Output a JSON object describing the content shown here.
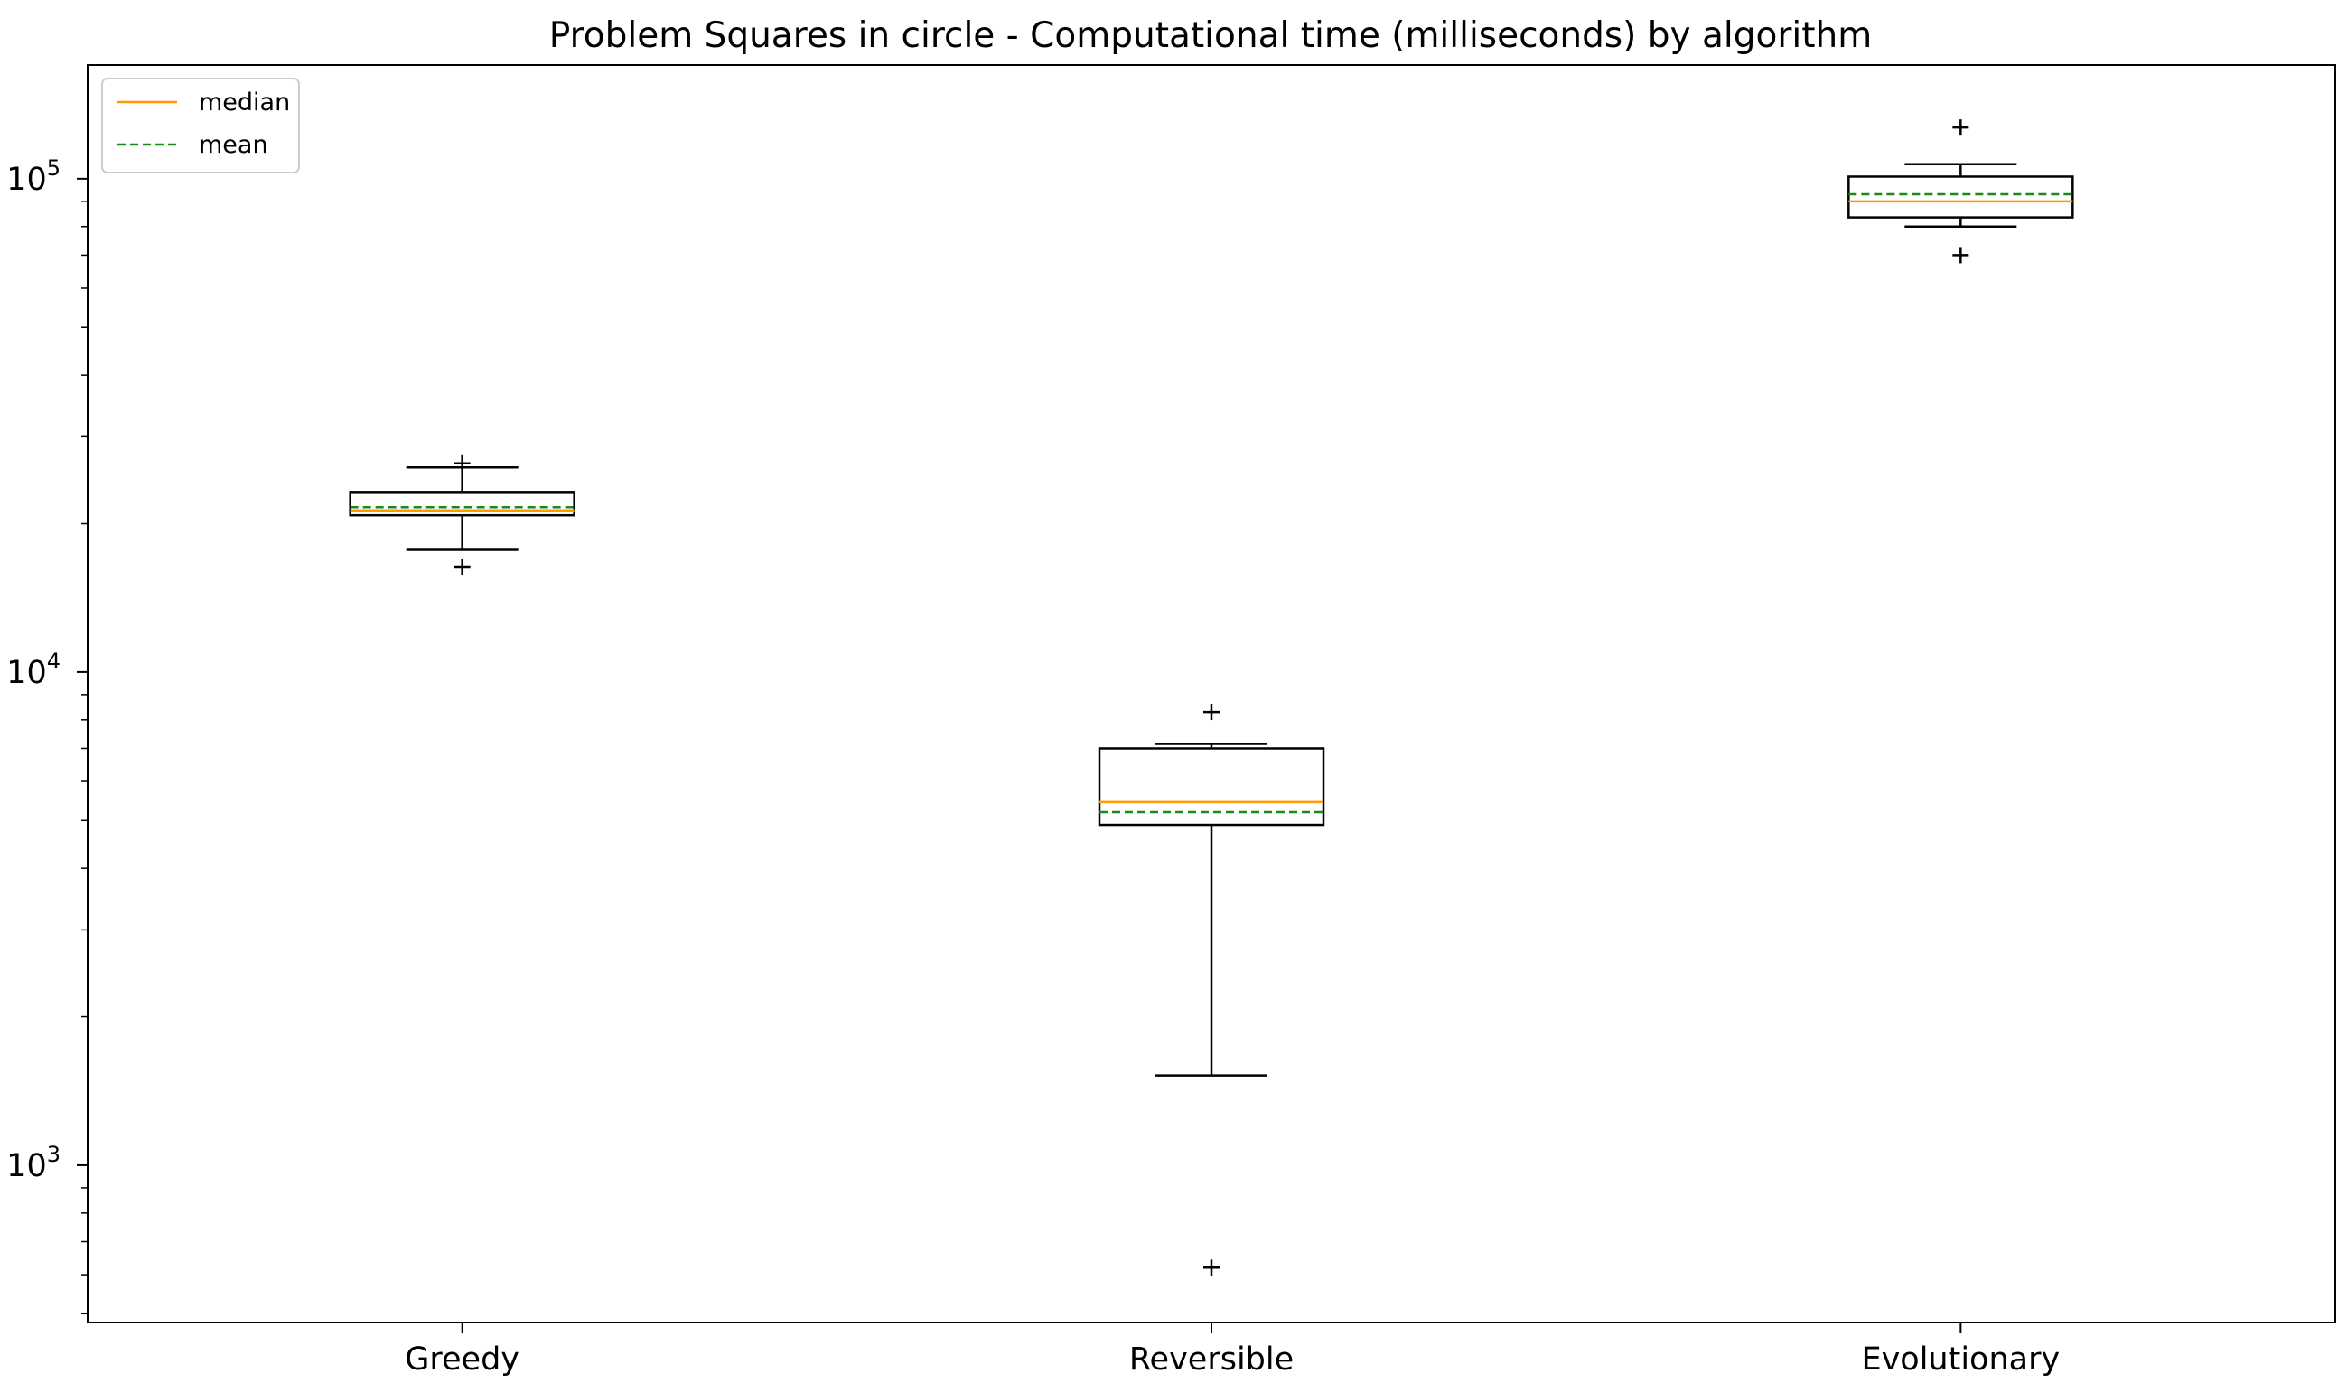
{
  "chart_data": {
    "type": "boxplot",
    "title": "Problem Squares in circle - Computational time (milliseconds) by algorithm",
    "xlabel": "",
    "ylabel": "",
    "yscale": "log",
    "ylim": [
      480,
      170000
    ],
    "y_tick_labels": [
      {
        "base": "10",
        "exp": "3",
        "value": 1000
      },
      {
        "base": "10",
        "exp": "4",
        "value": 10000
      },
      {
        "base": "10",
        "exp": "5",
        "value": 100000
      }
    ],
    "categories": [
      "Greedy",
      "Reversible",
      "Evolutionary"
    ],
    "boxes": [
      {
        "q1": 20800,
        "median": 21200,
        "mean": 21600,
        "q3": 23100,
        "whisker_low": 17700,
        "whisker_high": 26000,
        "outliers": [
          16300,
          26500
        ]
      },
      {
        "q1": 4900,
        "median": 5450,
        "mean": 5200,
        "q3": 7000,
        "whisker_low": 1520,
        "whisker_high": 7150,
        "outliers": [
          8300,
          620
        ]
      },
      {
        "q1": 83500,
        "median": 90000,
        "mean": 93000,
        "q3": 101000,
        "whisker_low": 80000,
        "whisker_high": 107000,
        "outliers": [
          127000,
          70000
        ]
      }
    ],
    "legend": {
      "position": "upper-left",
      "entries": [
        {
          "label": "median",
          "color": "#ff9900",
          "style": "solid"
        },
        {
          "label": "mean",
          "color": "#1a8a1a",
          "style": "dashed"
        }
      ]
    },
    "grid": false,
    "colors": {
      "median": "#ff9900",
      "mean": "#1a8a1a",
      "box": "#000000"
    }
  }
}
